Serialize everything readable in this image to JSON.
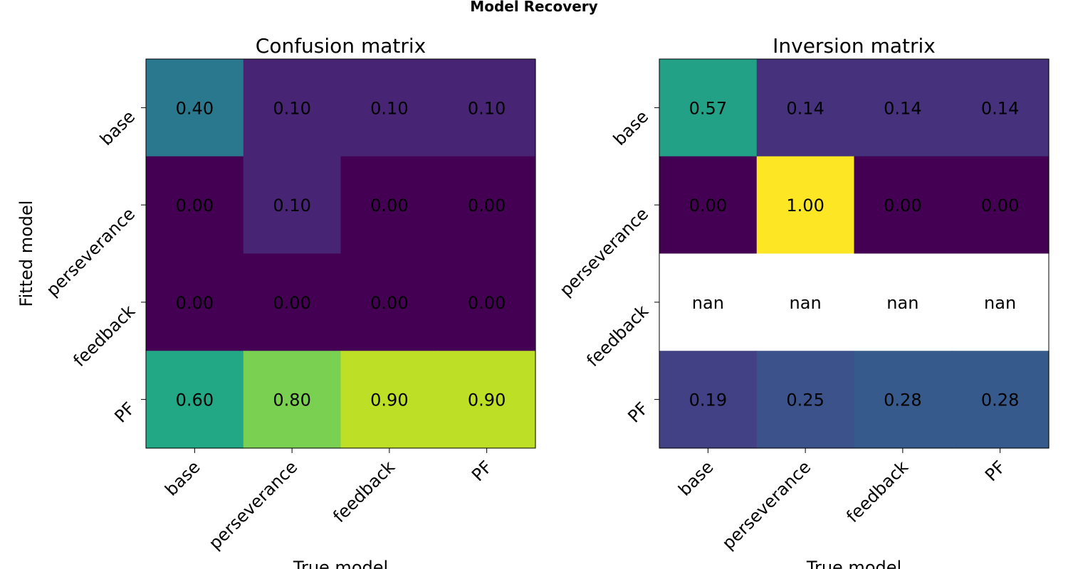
{
  "figure": {
    "suptitle": "Model Recovery"
  },
  "chart_data": [
    {
      "type": "heatmap",
      "title": "Confusion matrix",
      "xlabel": "True model",
      "ylabel": "Fitted model",
      "x_categories": [
        "base",
        "perseverance",
        "feedback",
        "PF"
      ],
      "y_categories": [
        "base",
        "perseverance",
        "feedback",
        "PF"
      ],
      "values": [
        [
          0.4,
          0.1,
          0.1,
          0.1
        ],
        [
          0.0,
          0.1,
          0.0,
          0.0
        ],
        [
          0.0,
          0.0,
          0.0,
          0.0
        ],
        [
          0.6,
          0.8,
          0.9,
          0.9
        ]
      ],
      "value_labels": [
        [
          "0.40",
          "0.10",
          "0.10",
          "0.10"
        ],
        [
          "0.00",
          "0.10",
          "0.00",
          "0.00"
        ],
        [
          "0.00",
          "0.00",
          "0.00",
          "0.00"
        ],
        [
          "0.60",
          "0.80",
          "0.90",
          "0.90"
        ]
      ],
      "colormap": "viridis",
      "color_range": [
        0,
        1
      ]
    },
    {
      "type": "heatmap",
      "title": "Inversion matrix",
      "xlabel": "True model",
      "ylabel": "",
      "x_categories": [
        "base",
        "perseverance",
        "feedback",
        "PF"
      ],
      "y_categories": [
        "base",
        "perseverance",
        "feedback",
        "PF"
      ],
      "values": [
        [
          0.57,
          0.14,
          0.14,
          0.14
        ],
        [
          0.0,
          1.0,
          0.0,
          0.0
        ],
        [
          null,
          null,
          null,
          null
        ],
        [
          0.19,
          0.25,
          0.28,
          0.28
        ]
      ],
      "value_labels": [
        [
          "0.57",
          "0.14",
          "0.14",
          "0.14"
        ],
        [
          "0.00",
          "1.00",
          "0.00",
          "0.00"
        ],
        [
          "nan",
          "nan",
          "nan",
          "nan"
        ],
        [
          "0.19",
          "0.25",
          "0.28",
          "0.28"
        ]
      ],
      "colormap": "viridis",
      "color_range": [
        0,
        1
      ]
    }
  ]
}
